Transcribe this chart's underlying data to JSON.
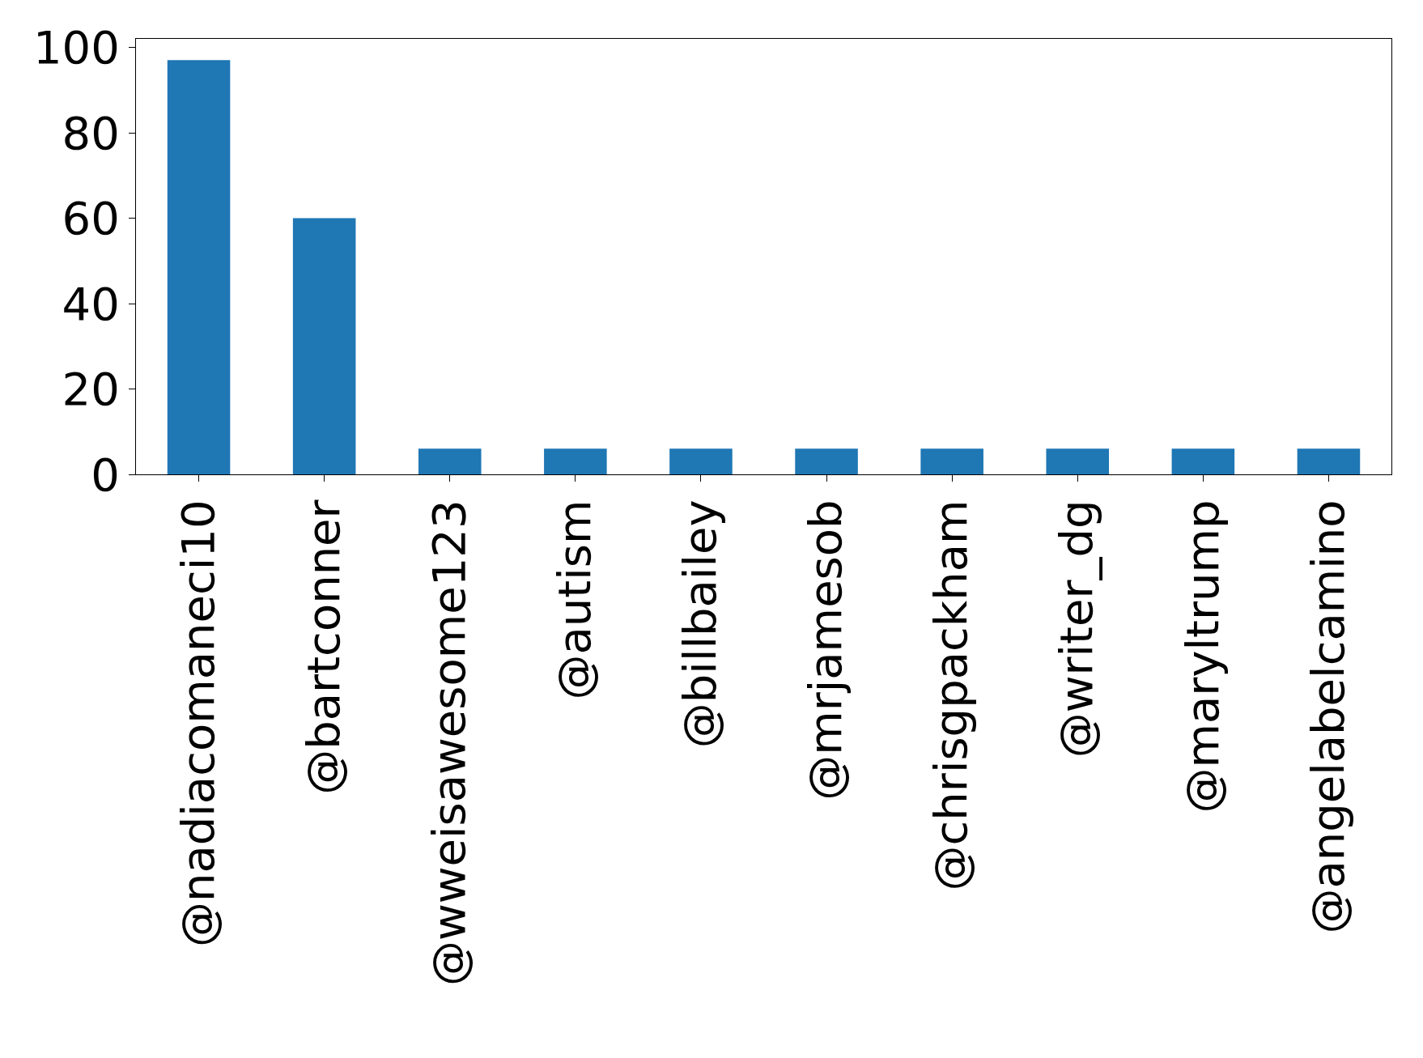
{
  "chart_data": {
    "type": "bar",
    "categories": [
      "@nadiacomaneci10",
      "@bartconner",
      "@wweisawesome123",
      "@autism",
      "@billbailey",
      "@mrjamesob",
      "@chrisgpackham",
      "@writer_dg",
      "@maryltrump",
      "@angelabelcamino"
    ],
    "values": [
      97,
      60,
      6,
      6,
      6,
      6,
      6,
      6,
      6,
      6
    ],
    "color": "#1f77b4",
    "ylim": [
      0,
      102
    ],
    "yticks": [
      0,
      20,
      40,
      60,
      80,
      100
    ]
  }
}
